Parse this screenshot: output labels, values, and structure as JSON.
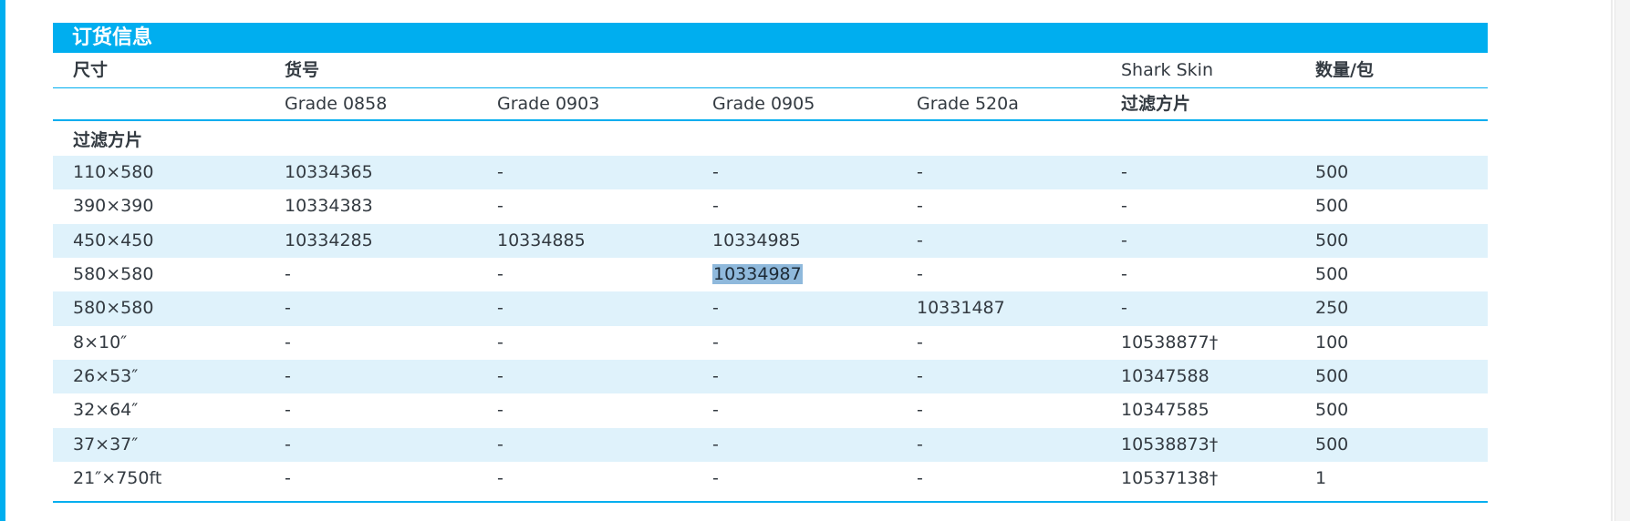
{
  "table": {
    "title": "订货信息",
    "header1": {
      "size": "尺寸",
      "catalog": "货号",
      "shark": "Shark Skin",
      "qty": "数量/包"
    },
    "header2": {
      "g0858": "Grade 0858",
      "g0903": "Grade 0903",
      "g0905": "Grade 0905",
      "g520a": "Grade 520a",
      "shark_sub": "过滤方片"
    },
    "section_label": "过滤方片",
    "rows": [
      {
        "size": "110×580",
        "g0858": "10334365",
        "g0903": "-",
        "g0905": "-",
        "g520a": "-",
        "shark": "-",
        "qty": "500"
      },
      {
        "size": "390×390",
        "g0858": "10334383",
        "g0903": "-",
        "g0905": "-",
        "g520a": "-",
        "shark": "-",
        "qty": "500"
      },
      {
        "size": "450×450",
        "g0858": "10334285",
        "g0903": "10334885",
        "g0905": "10334985",
        "g520a": "-",
        "shark": "-",
        "qty": "500"
      },
      {
        "size": "580×580",
        "g0858": "-",
        "g0903": "-",
        "g0905": "10334987",
        "g520a": "-",
        "shark": "-",
        "qty": "500"
      },
      {
        "size": "580×580",
        "g0858": "-",
        "g0903": "-",
        "g0905": "-",
        "g520a": "10331487",
        "shark": "-",
        "qty": "250"
      },
      {
        "size": "8×10″",
        "g0858": "-",
        "g0903": "-",
        "g0905": "-",
        "g520a": "-",
        "shark": "10538877†",
        "qty": "100"
      },
      {
        "size": "26×53″",
        "g0858": "-",
        "g0903": "-",
        "g0905": "-",
        "g520a": "-",
        "shark": "10347588",
        "qty": "500"
      },
      {
        "size": "32×64″",
        "g0858": "-",
        "g0903": "-",
        "g0905": "-",
        "g520a": "-",
        "shark": "10347585",
        "qty": "500"
      },
      {
        "size": "37×37″",
        "g0858": "-",
        "g0903": "-",
        "g0905": "-",
        "g520a": "-",
        "shark": "10538873†",
        "qty": "500"
      },
      {
        "size": "21″×750ft",
        "g0858": "-",
        "g0903": "-",
        "g0905": "-",
        "g520a": "-",
        "shark": "10537138†",
        "qty": "1"
      }
    ],
    "colors": {
      "accent": "#00aeef",
      "row_tint": "#dff2fb",
      "selection": "#8fb9dc",
      "text": "#333a41"
    }
  }
}
